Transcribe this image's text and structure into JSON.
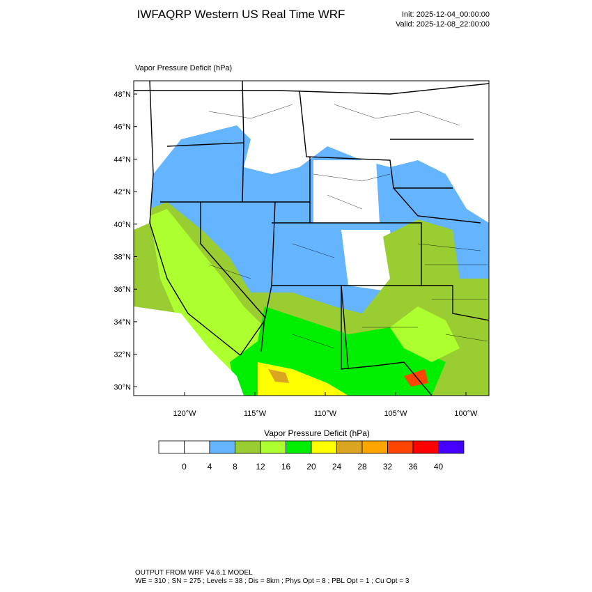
{
  "header": {
    "title": "IWFAQRP Western US Real Time WRF",
    "init": "Init: 2025-12-04_00:00:00",
    "valid": "Valid: 2025-12-08_22:00:00"
  },
  "map": {
    "field_label": "Vapor Pressure Deficit   (hPa)",
    "lat_labels": [
      "48°N",
      "46°N",
      "44°N",
      "42°N",
      "40°N",
      "38°N",
      "36°N",
      "34°N",
      "32°N",
      "30°N"
    ],
    "lon_labels": [
      "120°W",
      "115°W",
      "110°W",
      "105°W",
      "100°W"
    ]
  },
  "colorbar": {
    "title": "Vapor Pressure Deficit  (hPa)",
    "levels": [
      0,
      4,
      8,
      12,
      16,
      20,
      24,
      28,
      32,
      36,
      40
    ],
    "colors": [
      "#ffffff",
      "#ffffff",
      "#64b4ff",
      "#9acd32",
      "#adff2f",
      "#00ee00",
      "#ffff00",
      "#daa520",
      "#ffa500",
      "#ff4500",
      "#ff0000",
      "#4400ff"
    ]
  },
  "footer": {
    "line1": "OUTPUT FROM WRF V4.6.1 MODEL",
    "line2": "WE = 310 ; SN = 275 ; Levels = 38 ; Dis = 8km ; Phys Opt = 8 ; PBL Opt = 1 ; Cu Opt = 3"
  }
}
